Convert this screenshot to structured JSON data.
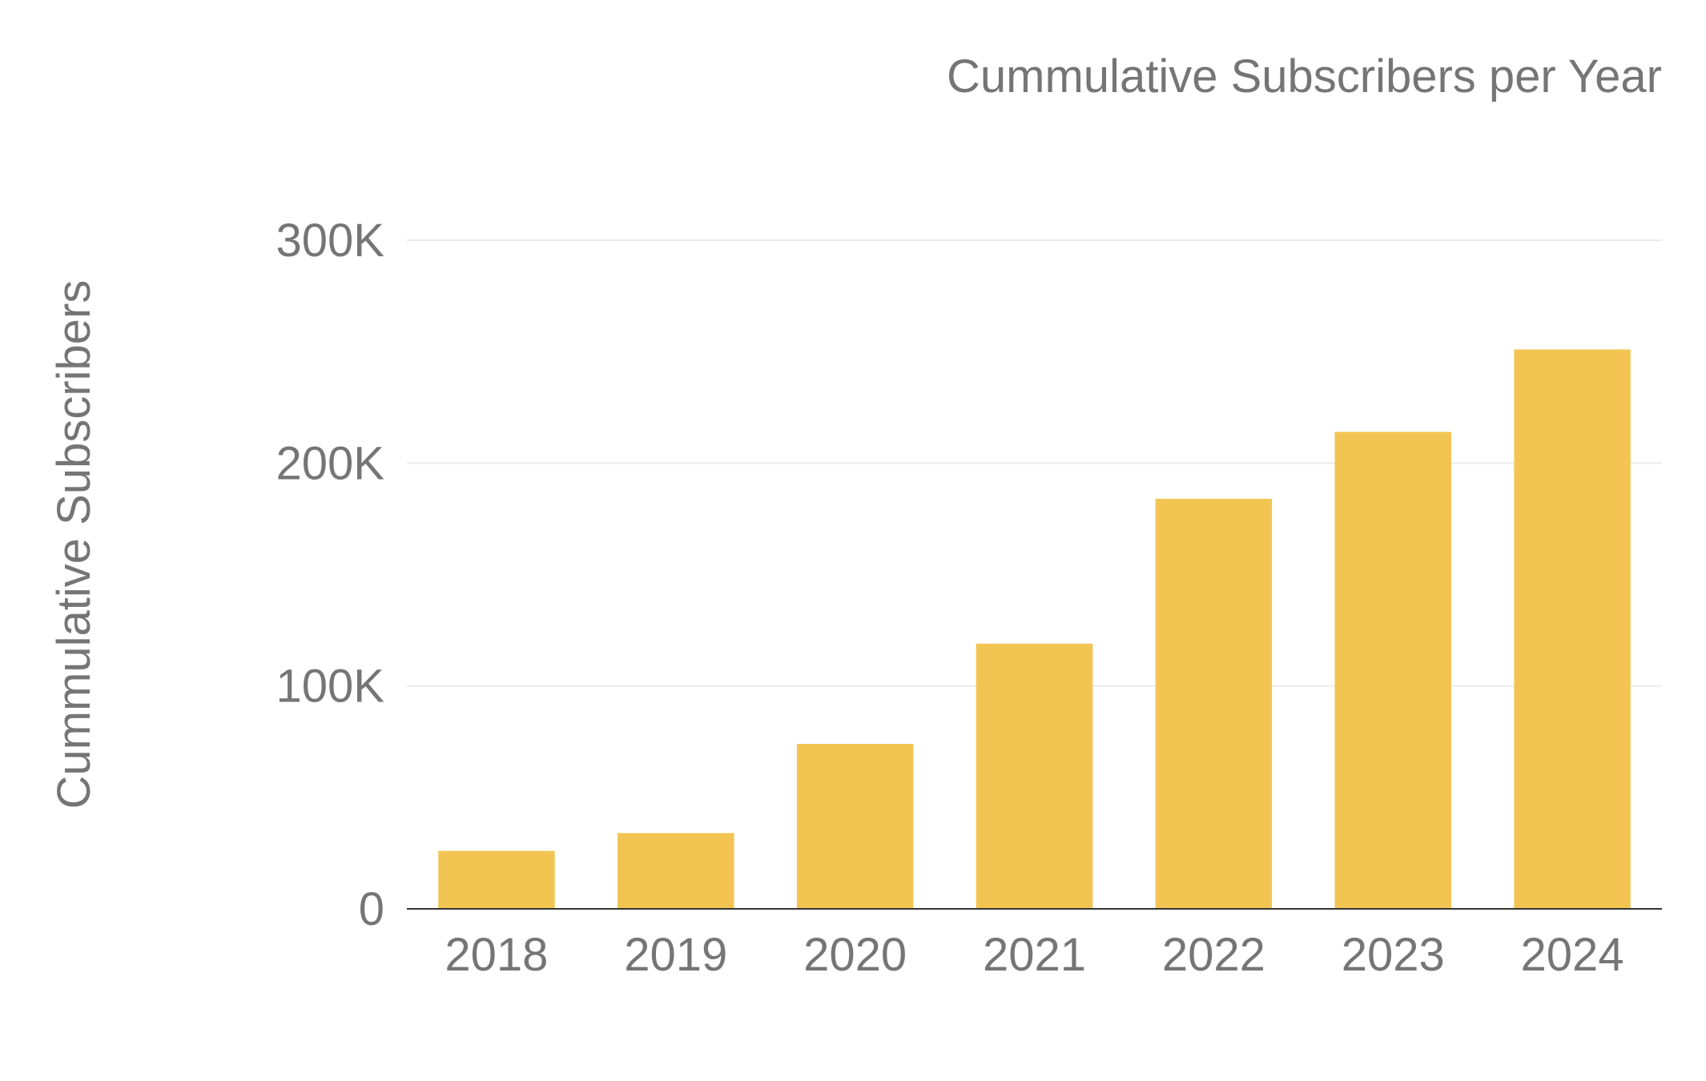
{
  "chart_data": {
    "type": "bar",
    "title": "Cummulative Subscribers per Year",
    "xlabel": "",
    "ylabel": "Cummulative Subscribers",
    "categories": [
      "2018",
      "2019",
      "2020",
      "2021",
      "2022",
      "2023",
      "2024"
    ],
    "series": [
      {
        "values": [
          26000,
          34000,
          74000,
          119000,
          184000,
          214000,
          251000
        ]
      }
    ],
    "ylim": [
      0,
      300000
    ],
    "yticks": [
      0,
      100000,
      200000,
      300000
    ],
    "ytick_labels": [
      "0",
      "100K",
      "200K",
      "300K"
    ],
    "grid": true,
    "legend": "none",
    "colors": {
      "bar": "#F2C553",
      "text": "#757575",
      "grid": "#EBEBEB",
      "axis": "#333333"
    }
  }
}
